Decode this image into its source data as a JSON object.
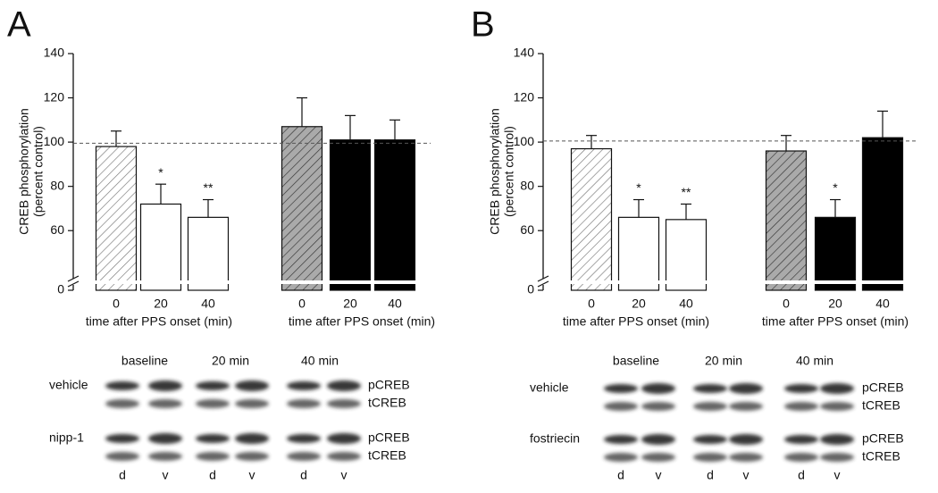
{
  "chart_data": [
    {
      "type": "bar",
      "panel": "A",
      "y_label_lines": [
        "CREB phosphorylation",
        "(percent control)"
      ],
      "x_labels": [
        "time after PPS onset (min)",
        "time after PPS onset (min)"
      ],
      "categories": [
        "0",
        "20",
        "40",
        "0",
        "20",
        "40"
      ],
      "values": [
        98,
        72,
        66,
        107,
        101,
        101
      ],
      "errors": [
        7,
        9,
        8,
        13,
        11,
        9
      ],
      "annotations": [
        null,
        "*",
        "**",
        null,
        null,
        null
      ],
      "colors": [
        "#ffffff",
        "#ffffff",
        "#ffffff",
        "#aaaaaa",
        "#000000",
        "#000000"
      ],
      "hatch": [
        true,
        false,
        false,
        true,
        false,
        false
      ],
      "ylim": [
        50,
        140
      ],
      "yticks": [
        0,
        60,
        80,
        100,
        120,
        140
      ],
      "axis_break": true,
      "reference_line": 99.5
    },
    {
      "type": "bar",
      "panel": "B",
      "y_label_lines": [
        "CREB phosphorylation",
        "(percent control)"
      ],
      "x_labels": [
        "time after PPS onset (min)",
        "time after PPS onset (min)"
      ],
      "categories": [
        "0",
        "20",
        "40",
        "0",
        "20",
        "40"
      ],
      "values": [
        97,
        66,
        65,
        96,
        66,
        102
      ],
      "errors": [
        6,
        8,
        7,
        7,
        8,
        12
      ],
      "annotations": [
        null,
        "*",
        "**",
        null,
        "*",
        null
      ],
      "colors": [
        "#ffffff",
        "#ffffff",
        "#ffffff",
        "#aaaaaa",
        "#000000",
        "#000000"
      ],
      "hatch": [
        true,
        false,
        false,
        true,
        false,
        false
      ],
      "ylim": [
        50,
        140
      ],
      "yticks": [
        0,
        60,
        80,
        100,
        120,
        140
      ],
      "axis_break": true,
      "reference_line": 100.5
    }
  ],
  "blots": [
    {
      "headers": [
        "baseline",
        "20 min",
        "40 min"
      ],
      "rows": [
        {
          "label": "vehicle",
          "bands": [
            "pCREB",
            "tCREB"
          ]
        },
        {
          "label": "nipp-1",
          "bands": [
            "pCREB",
            "tCREB"
          ]
        }
      ],
      "lanes": [
        "d",
        "v",
        "d",
        "v",
        "d",
        "v"
      ]
    },
    {
      "headers": [
        "baseline",
        "20 min",
        "40 min"
      ],
      "rows": [
        {
          "label": "vehicle",
          "bands": [
            "pCREB",
            "tCREB"
          ]
        },
        {
          "label": "fostriecin",
          "bands": [
            "pCREB",
            "tCREB"
          ]
        }
      ],
      "lanes": [
        "d",
        "v",
        "d",
        "v",
        "d",
        "v"
      ]
    }
  ]
}
